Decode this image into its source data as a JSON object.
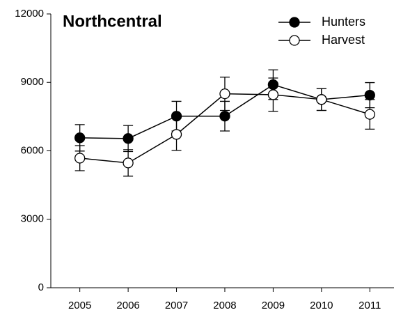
{
  "chart_data": {
    "type": "line",
    "title": "Northcentral",
    "x": [
      2005,
      2006,
      2007,
      2008,
      2009,
      2010,
      2011
    ],
    "xlim": [
      2004.4,
      2011.5
    ],
    "xticks": [
      2005,
      2006,
      2007,
      2008,
      2009,
      2010,
      2011
    ],
    "ylim": [
      0,
      12000
    ],
    "yticks": [
      0,
      3000,
      6000,
      9000,
      12000
    ],
    "legend": "upper right",
    "series": [
      {
        "name": "Hunters",
        "color": "#000000",
        "fill": "#000000",
        "values": [
          6570,
          6540,
          7520,
          7520,
          8900,
          8250,
          8440
        ],
        "errors": [
          580,
          570,
          650,
          650,
          650,
          480,
          550
        ]
      },
      {
        "name": "Harvest",
        "color": "#000000",
        "fill": "#ffffff",
        "values": [
          5680,
          5470,
          6720,
          8500,
          8460,
          8250,
          7600
        ],
        "errors": [
          550,
          580,
          700,
          730,
          730,
          480,
          650
        ]
      }
    ]
  }
}
